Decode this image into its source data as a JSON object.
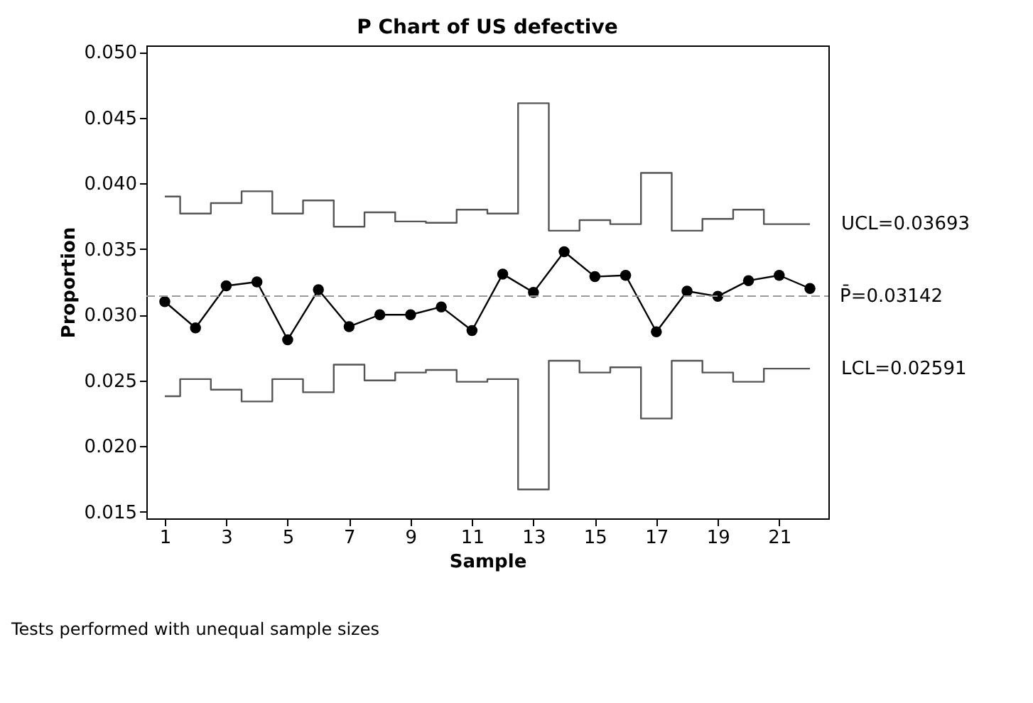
{
  "chart_data": {
    "type": "line",
    "title": "P Chart of US defective",
    "xlabel": "Sample",
    "ylabel": "Proportion",
    "x": [
      1,
      2,
      3,
      4,
      5,
      6,
      7,
      8,
      9,
      10,
      11,
      12,
      13,
      14,
      15,
      16,
      17,
      18,
      19,
      20,
      21,
      22
    ],
    "series": [
      {
        "type": "line",
        "color": "#000000",
        "marker": "circle",
        "values": [
          0.031,
          0.029,
          0.0322,
          0.0325,
          0.0281,
          0.0319,
          0.0291,
          0.03,
          0.03,
          0.0306,
          0.0288,
          0.0331,
          0.0317,
          0.0348,
          0.0329,
          0.033,
          0.0287,
          0.0318,
          0.0314,
          0.0326,
          0.033,
          0.032
        ]
      },
      {
        "type": "step",
        "color": "#555555",
        "marker": "none",
        "values": [
          0.039,
          0.0377,
          0.0385,
          0.0394,
          0.0377,
          0.0387,
          0.0367,
          0.0378,
          0.0371,
          0.037,
          0.038,
          0.0377,
          0.0461,
          0.0364,
          0.0372,
          0.0369,
          0.0408,
          0.0364,
          0.0373,
          0.038,
          0.0369,
          0.0369
        ]
      },
      {
        "type": "step",
        "color": "#555555",
        "marker": "none",
        "values": [
          0.0238,
          0.0251,
          0.0243,
          0.0234,
          0.0251,
          0.0241,
          0.0262,
          0.025,
          0.0256,
          0.0258,
          0.0249,
          0.0251,
          0.0167,
          0.0265,
          0.0256,
          0.026,
          0.0221,
          0.0265,
          0.0256,
          0.0249,
          0.0259,
          0.0259
        ]
      }
    ],
    "ref_lines": [
      {
        "axis": "y",
        "value": 0.03142,
        "label": "P̄=0.03142",
        "color": "#999999",
        "line_style": "dashed"
      }
    ],
    "annotations": [
      {
        "text": "UCL=0.03693",
        "x": 22,
        "y": 0.03693
      },
      {
        "text": "LCL=0.02591",
        "x": 22,
        "y": 0.02591
      },
      "Tests performed with unequal sample sizes"
    ],
    "xlim": [
      0.4,
      22.6
    ],
    "xticks": [
      1,
      3,
      5,
      7,
      9,
      11,
      13,
      15,
      17,
      19,
      21
    ],
    "ylim": [
      0.0145,
      0.0505
    ],
    "yticks": [
      {
        "value": 0.015,
        "label": "0.015"
      },
      {
        "value": 0.02,
        "label": "0.020"
      },
      {
        "value": 0.025,
        "label": "0.025"
      },
      {
        "value": 0.03,
        "label": "0.030"
      },
      {
        "value": 0.035,
        "label": "0.035"
      },
      {
        "value": 0.04,
        "label": "0.040"
      },
      {
        "value": 0.045,
        "label": "0.045"
      },
      {
        "value": 0.05,
        "label": "0.050"
      }
    ],
    "grid": false,
    "legend": false
  }
}
